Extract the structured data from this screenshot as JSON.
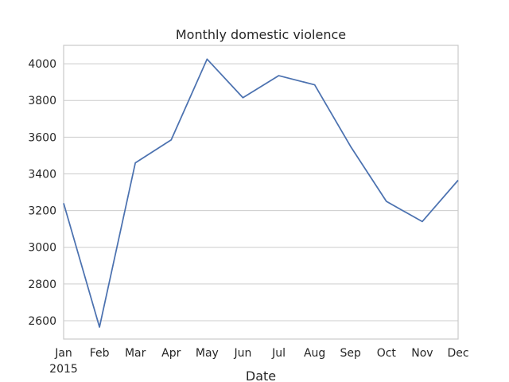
{
  "chart_data": {
    "type": "line",
    "title": "Monthly domestic violence",
    "xlabel": "Date",
    "ylabel": "",
    "x_tick_labels": [
      "Jan",
      "Feb",
      "Mar",
      "Apr",
      "May",
      "Jun",
      "Jul",
      "Aug",
      "Sep",
      "Oct",
      "Nov",
      "Dec"
    ],
    "x_year_label": "2015",
    "x": [
      "2015-01",
      "2015-02",
      "2015-03",
      "2015-04",
      "2015-05",
      "2015-06",
      "2015-07",
      "2015-08",
      "2015-09",
      "2015-10",
      "2015-11",
      "2015-12"
    ],
    "y_ticks": [
      "2600",
      "2800",
      "3000",
      "3200",
      "3400",
      "3600",
      "3800",
      "4000"
    ],
    "ylim": [
      2500,
      4100
    ],
    "grid": true,
    "series": [
      {
        "values": [
          3240,
          2565,
          3460,
          3585,
          4025,
          3815,
          3935,
          3885,
          3550,
          3250,
          3140,
          3365
        ],
        "color": "#4c72b0"
      }
    ],
    "colors": {
      "grid": "#cccccc",
      "spine": "#cccccc",
      "text": "#262626"
    }
  }
}
